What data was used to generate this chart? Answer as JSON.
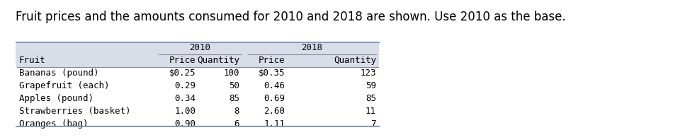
{
  "title": "Fruit prices and the amounts consumed for 2010 and 2018 are shown. Use 2010 as the base.",
  "title_fontsize": 12,
  "font_family": "monospace",
  "table_bg_color": "#d8dde8",
  "row_bg_white": "#ffffff",
  "table_border_color": "#8899bb",
  "col_header_2010": "2010",
  "col_header_2018": "2018",
  "fruits": [
    "Fruit",
    "Bananas (pound)",
    "Grapefruit (each)",
    "Apples (pound)",
    "Strawberries (basket)",
    "Oranges (bag)"
  ],
  "price_2010": [
    "Price",
    "$0.25",
    "0.29",
    "0.34",
    "1.00",
    "0.90"
  ],
  "qty_2010": [
    "Quantity",
    "100",
    "50",
    "85",
    "8",
    "6"
  ],
  "price_2018": [
    "Price",
    "$0.35",
    "0.46",
    "0.69",
    "2.60",
    "1.11"
  ],
  "qty_2018": [
    "Quantity",
    "123",
    "59",
    "85",
    "11",
    "7"
  ]
}
